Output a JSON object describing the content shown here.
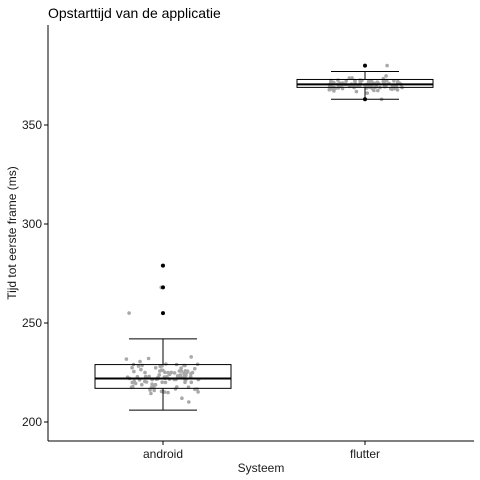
{
  "chart_data": {
    "type": "boxplot",
    "title": "Opstarttijd van de applicatie",
    "xlabel": "Systeem",
    "ylabel": "Tijd tot eerste frame (ms)",
    "categories": [
      "android",
      "flutter"
    ],
    "ylim": [
      195,
      400
    ],
    "yticks": [
      200,
      250,
      300,
      350
    ],
    "grid": false,
    "boxes": [
      {
        "name": "android",
        "whisker_low": 206,
        "q1": 217,
        "median": 222,
        "q3": 229,
        "whisker_high": 242,
        "outliers": [
          255,
          268,
          279
        ]
      },
      {
        "name": "flutter",
        "whisker_low": 363,
        "q1": 369,
        "median": 370.5,
        "q3": 373,
        "whisker_high": 377,
        "outliers": [
          363,
          380
        ]
      }
    ],
    "colors": {
      "points": "#a8a8a8",
      "box": "#000000",
      "outlier": "#000000"
    }
  }
}
